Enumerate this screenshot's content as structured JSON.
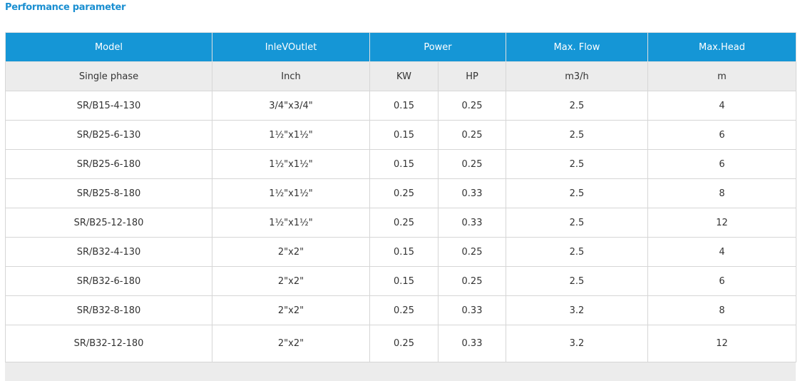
{
  "title": "Performance parameter",
  "table": {
    "header": [
      "Model",
      "InleVOutlet",
      "Power",
      "Max. Flow",
      "Max.Head"
    ],
    "subheader": [
      "Single phase",
      "Inch",
      "KW",
      "HP",
      "m3/h",
      "m"
    ],
    "rows": [
      [
        "SR/B15-4-130",
        "3/4\"x3/4\"",
        "0.15",
        "0.25",
        "2.5",
        "4"
      ],
      [
        "SR/B25-6-130",
        "1½\"x1½\"",
        "0.15",
        "0.25",
        "2.5",
        "6"
      ],
      [
        "SR/B25-6-180",
        "1½\"x1½\"",
        "0.15",
        "0.25",
        "2.5",
        "6"
      ],
      [
        "SR/B25-8-180",
        "1½\"x1½\"",
        "0.25",
        "0.33",
        "2.5",
        "8"
      ],
      [
        "SR/B25-12-180",
        "1½\"x1½\"",
        "0.25",
        "0.33",
        "2.5",
        "12"
      ],
      [
        "SR/B32-4-130",
        "2\"x2\"",
        "0.15",
        "0.25",
        "2.5",
        "4"
      ],
      [
        "SR/B32-6-180",
        "2\"x2\"",
        "0.15",
        "0.25",
        "2.5",
        "6"
      ],
      [
        "SR/B32-8-180",
        "2\"x2\"",
        "0.25",
        "0.33",
        "3.2",
        "8"
      ],
      [
        "SR/B32-12-180",
        "2\"x2\"",
        "0.25",
        "0.33",
        "3.2",
        "12"
      ]
    ]
  }
}
